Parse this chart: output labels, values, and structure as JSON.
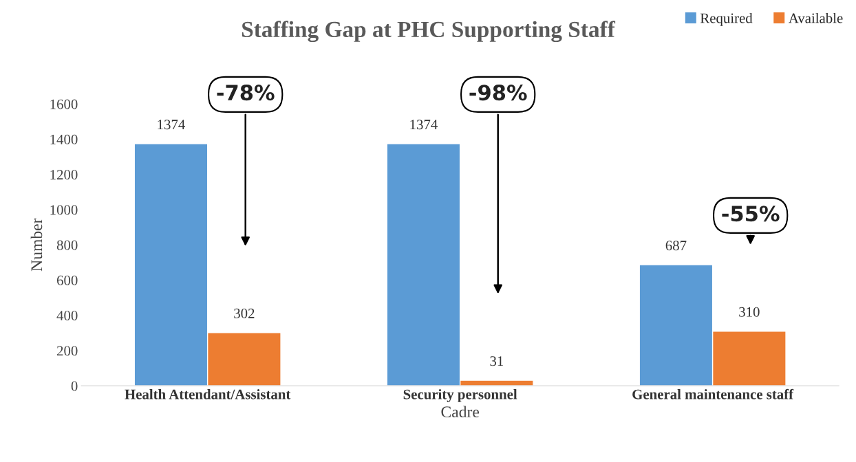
{
  "chart_data": {
    "type": "bar",
    "title": "Staffing Gap at PHC Supporting Staff",
    "xlabel": "Cadre",
    "ylabel": "Number",
    "categories": [
      "Health Attendant/Assistant",
      "Security personnel",
      "General maintenance staff"
    ],
    "series": [
      {
        "name": "Required",
        "color": "#5b9bd5",
        "values": [
          1374,
          1374,
          687
        ]
      },
      {
        "name": "Available",
        "color": "#ed7d31",
        "values": [
          302,
          31,
          310
        ]
      }
    ],
    "ylim": [
      0,
      1600
    ],
    "yticks": [
      0,
      200,
      400,
      600,
      800,
      1000,
      1200,
      1400,
      1600
    ],
    "grid": false,
    "legend": "top right",
    "data_labels": true,
    "annotations": [
      "-78%",
      "-98%",
      "-55%"
    ]
  }
}
